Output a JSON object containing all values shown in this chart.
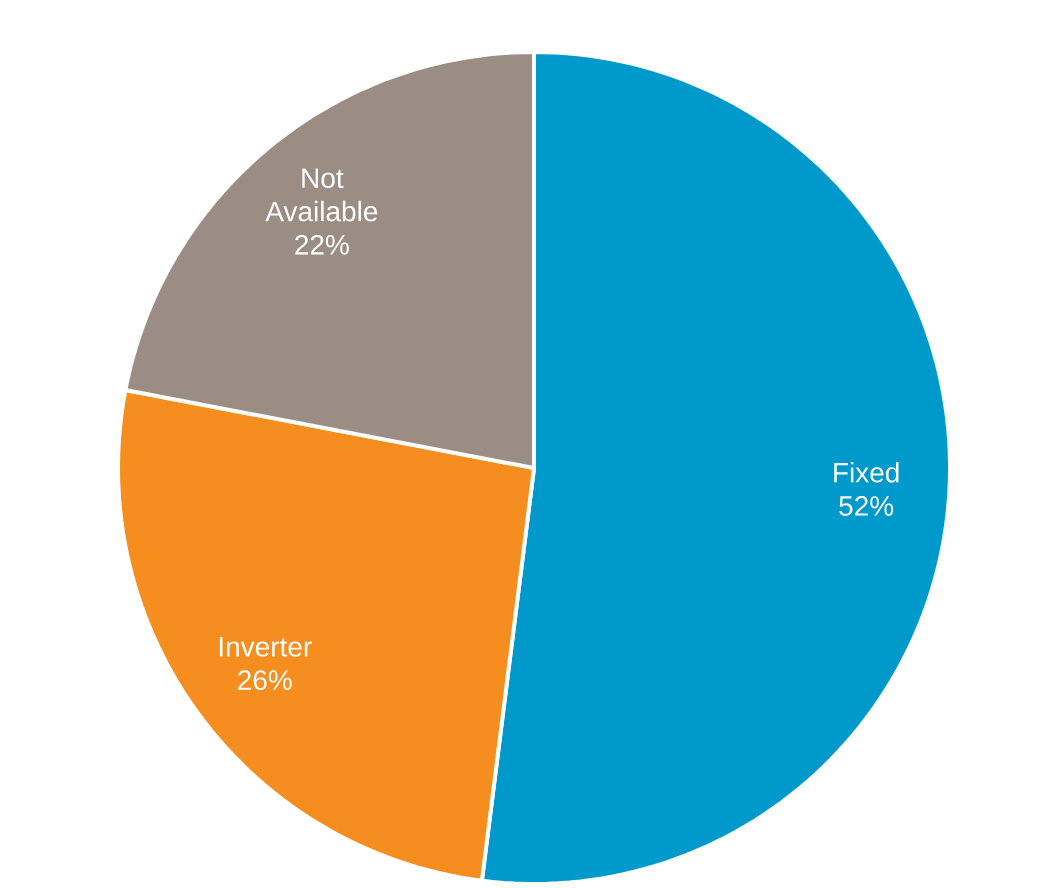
{
  "chart_data": {
    "type": "pie",
    "categories": [
      "Fixed",
      "Inverter",
      "Not Available"
    ],
    "values": [
      52,
      26,
      22
    ],
    "colors": [
      "#0099cc",
      "#f68e1f",
      "#9b8d84"
    ],
    "value_labels": [
      "52%",
      "26%",
      "22%"
    ]
  }
}
